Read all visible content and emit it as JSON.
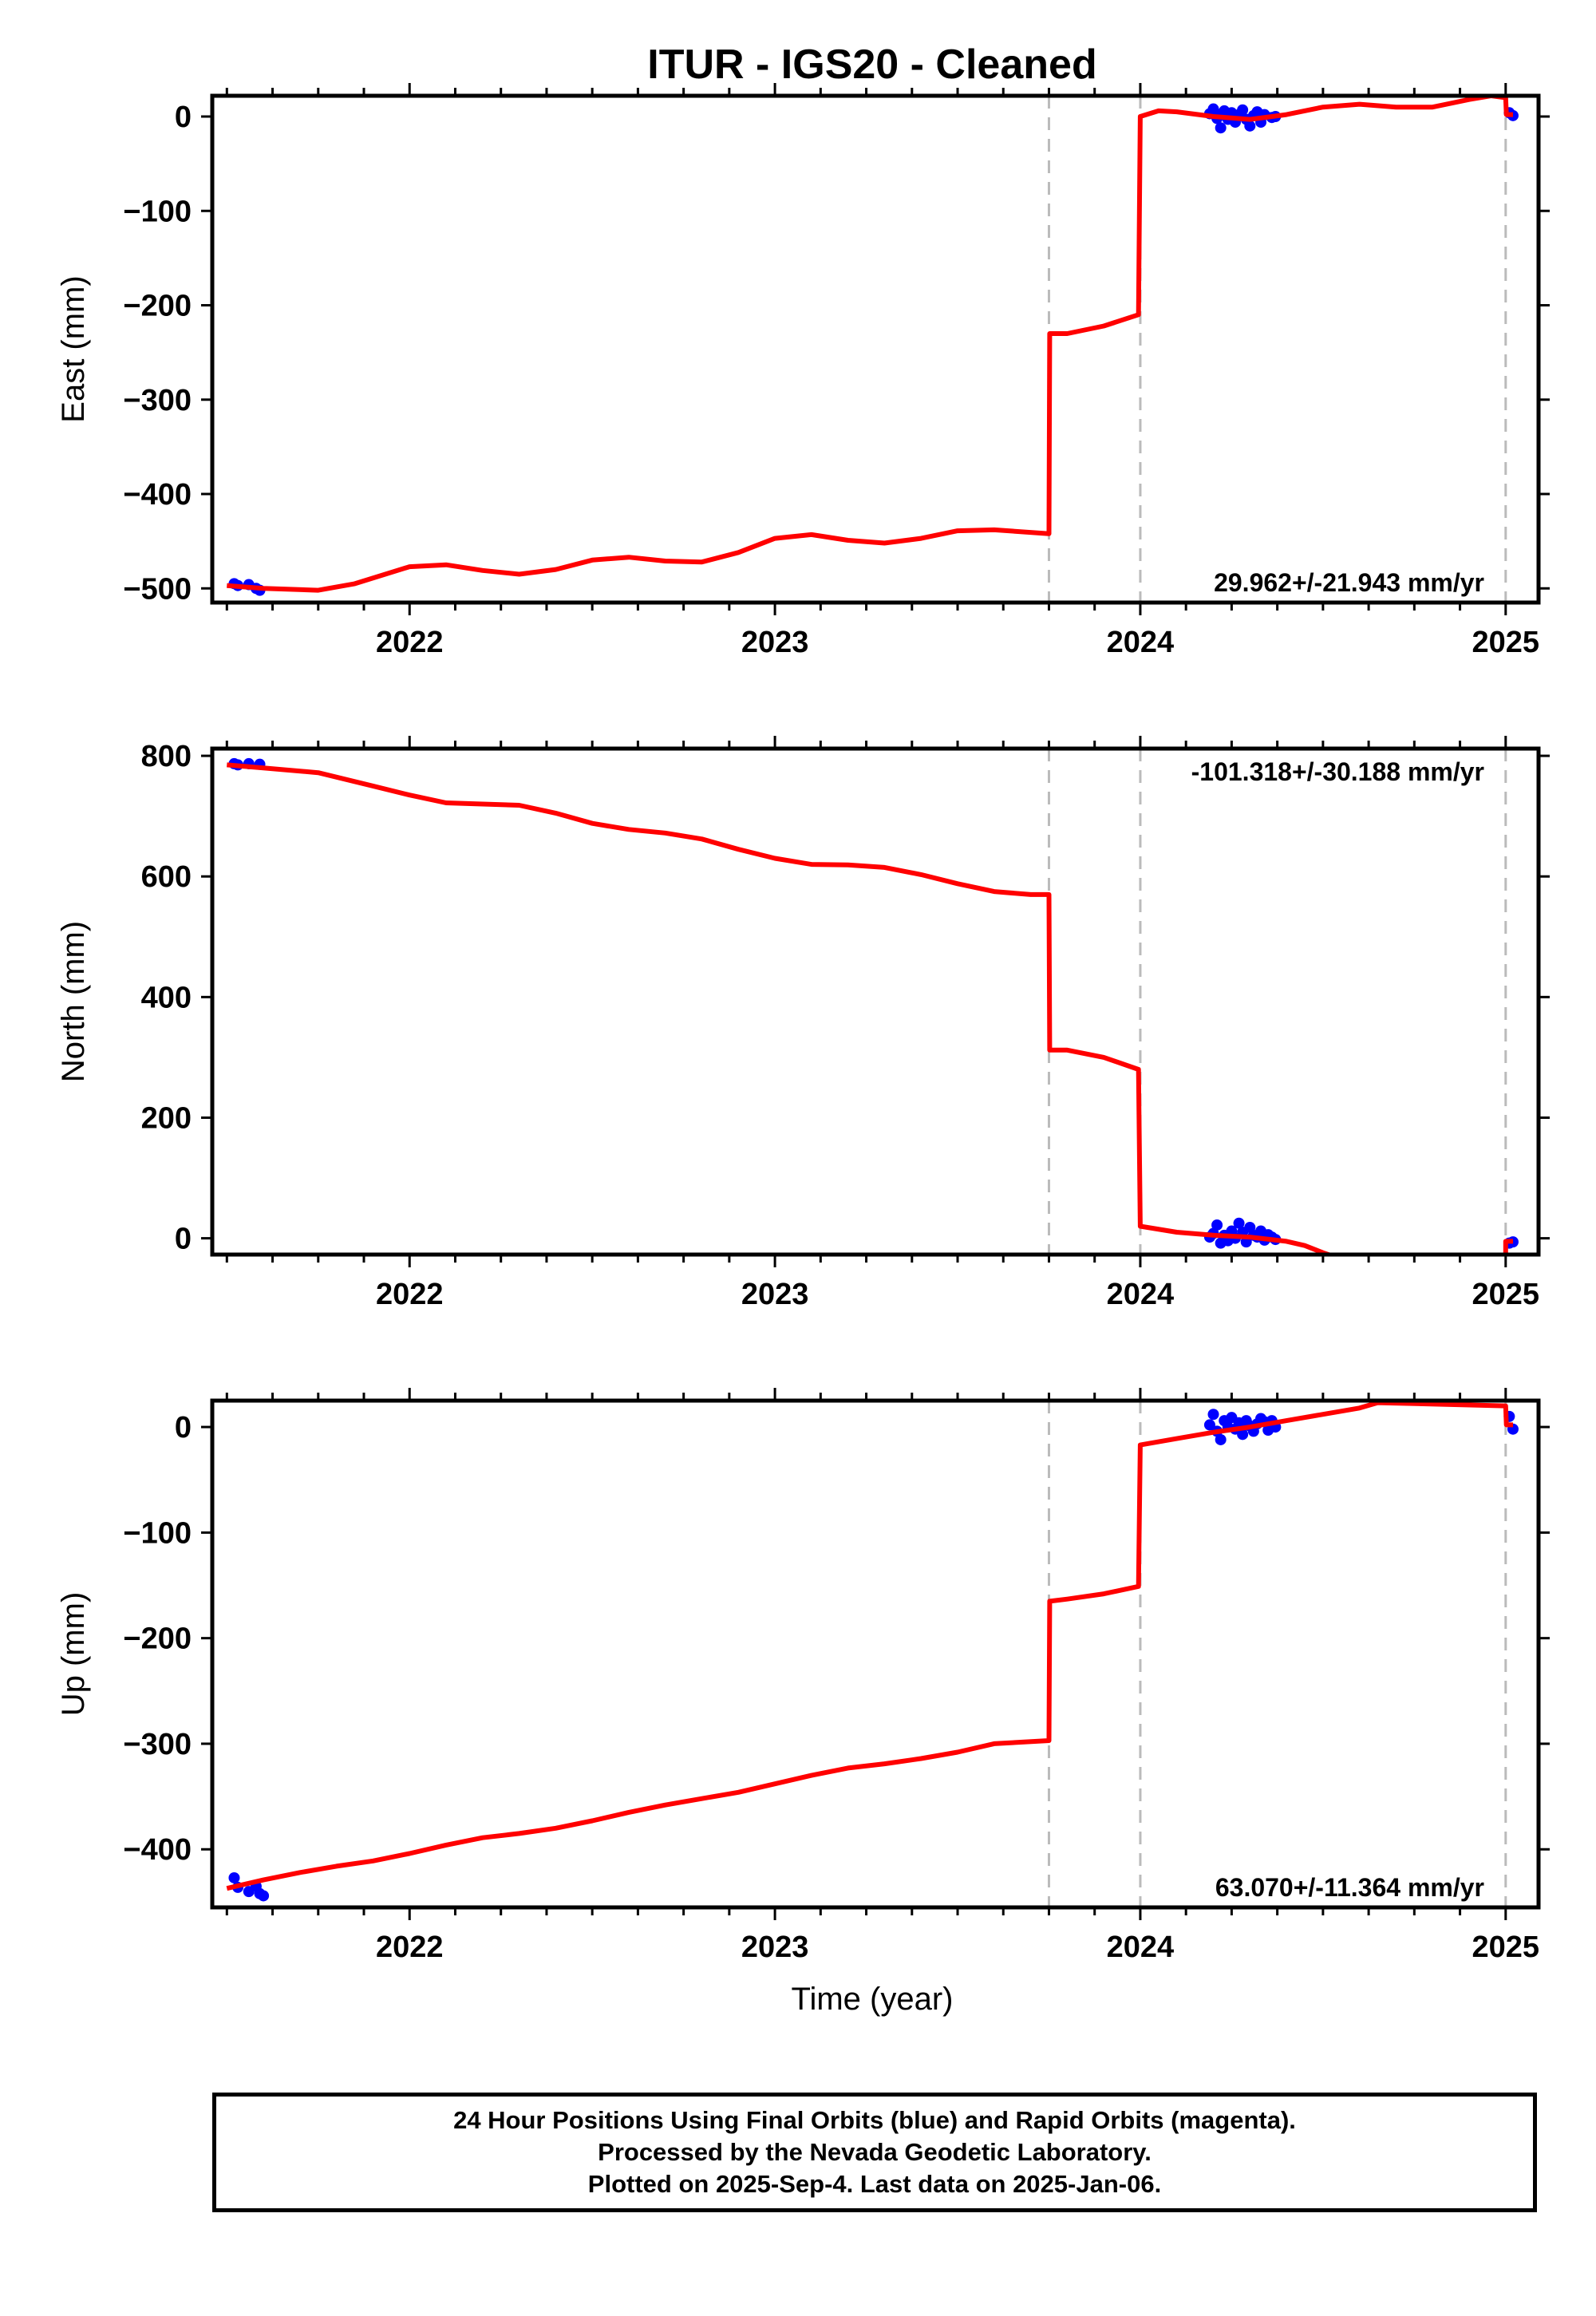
{
  "title": "ITUR  - IGS20 - Cleaned",
  "xlabel": "Time (year)",
  "footer": {
    "line1": "24 Hour Positions Using Final Orbits (blue) and Rapid Orbits (magenta).",
    "line2": "Processed by the Nevada Geodetic Laboratory.",
    "line3": "Plotted on 2025-Sep-4. Last data on 2025-Jan-06."
  },
  "colors": {
    "model": "#ff0000",
    "final_orbits": "#0000ff",
    "offset_lines": "#bbbbbb",
    "frame": "#000000"
  },
  "chart_data": [
    {
      "type": "scatter",
      "component": "east",
      "ylabel": "East (mm)",
      "rate_text": "29.962+/-21.943 mm/yr",
      "rate_position": "bottom-right",
      "xlim": [
        2021.46,
        2025.09
      ],
      "ylim": [
        -515,
        22
      ],
      "x_ticks": [
        "2022",
        "2023",
        "2024",
        "2025"
      ],
      "y_ticks": [
        0,
        -100,
        -200,
        -300,
        -400,
        -500
      ],
      "offsets": [
        2023.75,
        2024.0,
        2025.0
      ],
      "model": [
        [
          2021.5,
          -497
        ],
        [
          2021.6,
          -500
        ],
        [
          2021.75,
          -502
        ],
        [
          2021.85,
          -495
        ],
        [
          2022.0,
          -477
        ],
        [
          2022.1,
          -475
        ],
        [
          2022.2,
          -481
        ],
        [
          2022.3,
          -485
        ],
        [
          2022.4,
          -480
        ],
        [
          2022.5,
          -470
        ],
        [
          2022.6,
          -467
        ],
        [
          2022.7,
          -471
        ],
        [
          2022.8,
          -472
        ],
        [
          2022.9,
          -462
        ],
        [
          2023.0,
          -447
        ],
        [
          2023.1,
          -443
        ],
        [
          2023.2,
          -449
        ],
        [
          2023.3,
          -452
        ],
        [
          2023.4,
          -447
        ],
        [
          2023.5,
          -439
        ],
        [
          2023.6,
          -438
        ],
        [
          2023.75,
          -442
        ],
        [
          2023.752,
          -230
        ],
        [
          2023.8,
          -230
        ],
        [
          2023.9,
          -222
        ],
        [
          2023.995,
          -210
        ],
        [
          2024.0,
          0
        ],
        [
          2024.05,
          6
        ],
        [
          2024.1,
          5
        ],
        [
          2024.2,
          0
        ],
        [
          2024.3,
          -3
        ],
        [
          2024.4,
          2
        ],
        [
          2024.5,
          10
        ],
        [
          2024.6,
          13
        ],
        [
          2024.7,
          10
        ],
        [
          2024.8,
          10
        ],
        [
          2024.9,
          18
        ],
        [
          2024.96,
          22
        ],
        [
          2025.0,
          20
        ],
        [
          2025.002,
          2
        ],
        [
          2025.02,
          2
        ]
      ],
      "points": [
        [
          2021.52,
          -495
        ],
        [
          2021.53,
          -497
        ],
        [
          2021.56,
          -496
        ],
        [
          2021.58,
          -500
        ],
        [
          2021.59,
          -502
        ],
        [
          2024.19,
          3
        ],
        [
          2024.2,
          8
        ],
        [
          2024.21,
          -2
        ],
        [
          2024.22,
          -12
        ],
        [
          2024.22,
          2
        ],
        [
          2024.23,
          6
        ],
        [
          2024.24,
          -3
        ],
        [
          2024.25,
          4
        ],
        [
          2024.26,
          -6
        ],
        [
          2024.27,
          2
        ],
        [
          2024.28,
          7
        ],
        [
          2024.29,
          -3
        ],
        [
          2024.3,
          -10
        ],
        [
          2024.31,
          1
        ],
        [
          2024.32,
          5
        ],
        [
          2024.33,
          -6
        ],
        [
          2024.34,
          2
        ],
        [
          2024.36,
          -1
        ],
        [
          2024.37,
          0
        ],
        [
          2025.01,
          4
        ],
        [
          2025.02,
          1
        ]
      ]
    },
    {
      "type": "scatter",
      "component": "north",
      "ylabel": "North (mm)",
      "rate_text": "-101.318+/-30.188 mm/yr",
      "rate_position": "top-right",
      "xlim": [
        2021.46,
        2025.09
      ],
      "ylim": [
        -27,
        812
      ],
      "x_ticks": [
        "2022",
        "2023",
        "2024",
        "2025"
      ],
      "y_ticks": [
        0,
        200,
        400,
        600,
        800
      ],
      "offsets": [
        2023.75,
        2024.0,
        2025.0
      ],
      "model": [
        [
          2021.5,
          785
        ],
        [
          2021.6,
          780
        ],
        [
          2021.75,
          772
        ],
        [
          2021.9,
          750
        ],
        [
          2022.0,
          735
        ],
        [
          2022.1,
          722
        ],
        [
          2022.2,
          720
        ],
        [
          2022.3,
          718
        ],
        [
          2022.4,
          705
        ],
        [
          2022.5,
          688
        ],
        [
          2022.6,
          678
        ],
        [
          2022.7,
          672
        ],
        [
          2022.8,
          662
        ],
        [
          2022.9,
          645
        ],
        [
          2023.0,
          630
        ],
        [
          2023.1,
          620
        ],
        [
          2023.2,
          619
        ],
        [
          2023.3,
          615
        ],
        [
          2023.4,
          603
        ],
        [
          2023.5,
          588
        ],
        [
          2023.6,
          575
        ],
        [
          2023.7,
          570
        ],
        [
          2023.75,
          570
        ],
        [
          2023.752,
          312
        ],
        [
          2023.8,
          312
        ],
        [
          2023.9,
          300
        ],
        [
          2023.995,
          280
        ],
        [
          2024.0,
          20
        ],
        [
          2024.1,
          10
        ],
        [
          2024.2,
          5
        ],
        [
          2024.3,
          2
        ],
        [
          2024.4,
          -5
        ],
        [
          2024.45,
          -12
        ],
        [
          2024.5,
          -24
        ],
        [
          2024.53,
          -30
        ],
        [
          2025.0,
          -30
        ],
        [
          2025.0,
          -5
        ],
        [
          2025.02,
          -5
        ]
      ],
      "points": [
        [
          2021.52,
          787
        ],
        [
          2021.53,
          785
        ],
        [
          2021.56,
          787
        ],
        [
          2021.59,
          786
        ],
        [
          2024.19,
          2
        ],
        [
          2024.2,
          8
        ],
        [
          2024.21,
          22
        ],
        [
          2024.22,
          -8
        ],
        [
          2024.23,
          5
        ],
        [
          2024.24,
          -4
        ],
        [
          2024.25,
          12
        ],
        [
          2024.26,
          0
        ],
        [
          2024.27,
          25
        ],
        [
          2024.28,
          10
        ],
        [
          2024.29,
          -6
        ],
        [
          2024.3,
          18
        ],
        [
          2024.31,
          5
        ],
        [
          2024.32,
          2
        ],
        [
          2024.33,
          12
        ],
        [
          2024.34,
          -3
        ],
        [
          2024.35,
          6
        ],
        [
          2024.36,
          2
        ],
        [
          2024.37,
          -2
        ],
        [
          2025.01,
          -8
        ],
        [
          2025.02,
          -6
        ]
      ]
    },
    {
      "type": "scatter",
      "component": "up",
      "ylabel": "Up (mm)",
      "rate_text": "63.070+/-11.364 mm/yr",
      "rate_position": "bottom-right",
      "xlim": [
        2021.46,
        2025.09
      ],
      "ylim": [
        -455,
        25
      ],
      "x_ticks": [
        "2022",
        "2023",
        "2024",
        "2025"
      ],
      "y_ticks": [
        0,
        -100,
        -200,
        -300,
        -400
      ],
      "offsets": [
        2023.75,
        2024.0,
        2025.0
      ],
      "model": [
        [
          2021.5,
          -437
        ],
        [
          2021.6,
          -429
        ],
        [
          2021.7,
          -422
        ],
        [
          2021.8,
          -416
        ],
        [
          2021.9,
          -411
        ],
        [
          2022.0,
          -404
        ],
        [
          2022.1,
          -396
        ],
        [
          2022.2,
          -389
        ],
        [
          2022.3,
          -385
        ],
        [
          2022.4,
          -380
        ],
        [
          2022.5,
          -373
        ],
        [
          2022.6,
          -365
        ],
        [
          2022.7,
          -358
        ],
        [
          2022.8,
          -352
        ],
        [
          2022.9,
          -346
        ],
        [
          2023.0,
          -338
        ],
        [
          2023.1,
          -330
        ],
        [
          2023.2,
          -323
        ],
        [
          2023.3,
          -319
        ],
        [
          2023.4,
          -314
        ],
        [
          2023.5,
          -308
        ],
        [
          2023.6,
          -300
        ],
        [
          2023.75,
          -297
        ],
        [
          2023.752,
          -165
        ],
        [
          2023.8,
          -163
        ],
        [
          2023.9,
          -158
        ],
        [
          2023.995,
          -151
        ],
        [
          2024.0,
          -17
        ],
        [
          2024.1,
          -11
        ],
        [
          2024.2,
          -5
        ],
        [
          2024.3,
          0
        ],
        [
          2024.4,
          6
        ],
        [
          2024.5,
          12
        ],
        [
          2024.6,
          18
        ],
        [
          2024.65,
          23
        ],
        [
          2025.0,
          20
        ],
        [
          2025.002,
          2
        ],
        [
          2025.02,
          2
        ]
      ],
      "points": [
        [
          2021.52,
          -427
        ],
        [
          2021.53,
          -436
        ],
        [
          2021.56,
          -440
        ],
        [
          2021.58,
          -435
        ],
        [
          2021.59,
          -442
        ],
        [
          2021.6,
          -444
        ],
        [
          2024.19,
          2
        ],
        [
          2024.2,
          12
        ],
        [
          2024.21,
          -4
        ],
        [
          2024.22,
          -12
        ],
        [
          2024.23,
          6
        ],
        [
          2024.24,
          0
        ],
        [
          2024.25,
          9
        ],
        [
          2024.26,
          -2
        ],
        [
          2024.27,
          4
        ],
        [
          2024.28,
          -7
        ],
        [
          2024.29,
          6
        ],
        [
          2024.3,
          1
        ],
        [
          2024.31,
          -4
        ],
        [
          2024.32,
          3
        ],
        [
          2024.33,
          8
        ],
        [
          2024.34,
          5
        ],
        [
          2024.35,
          -3
        ],
        [
          2024.36,
          6
        ],
        [
          2024.37,
          0
        ],
        [
          2025.01,
          10
        ],
        [
          2025.02,
          -2
        ]
      ]
    }
  ]
}
